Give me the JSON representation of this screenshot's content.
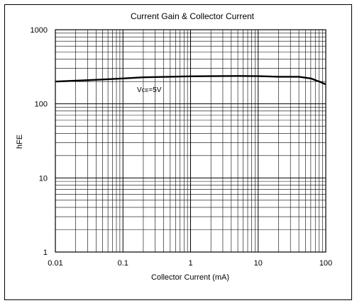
{
  "chart_data": {
    "type": "line",
    "title": "Current Gain & Collector Current",
    "xlabel": "Collector Current (mA)",
    "ylabel": "hFE",
    "xscale": "log",
    "yscale": "log",
    "xlim": [
      0.01,
      100
    ],
    "ylim": [
      1,
      1000
    ],
    "grid": true,
    "x_ticks": [
      "0.01",
      "0.1",
      "1",
      "10",
      "100"
    ],
    "y_ticks": [
      "1",
      "10",
      "100",
      "1000"
    ],
    "annotation": "VCE=5V",
    "series": [
      {
        "x": [
          0.01,
          0.02,
          0.05,
          0.1,
          0.2,
          0.5,
          1,
          2,
          5,
          10,
          20,
          40,
          60,
          80,
          100
        ],
        "y": [
          200,
          205,
          213,
          220,
          228,
          232,
          235,
          236,
          238,
          236,
          232,
          232,
          220,
          200,
          183
        ]
      }
    ],
    "colors": {
      "line": "#000000",
      "grid": "#000000",
      "frame": "#000000"
    }
  }
}
